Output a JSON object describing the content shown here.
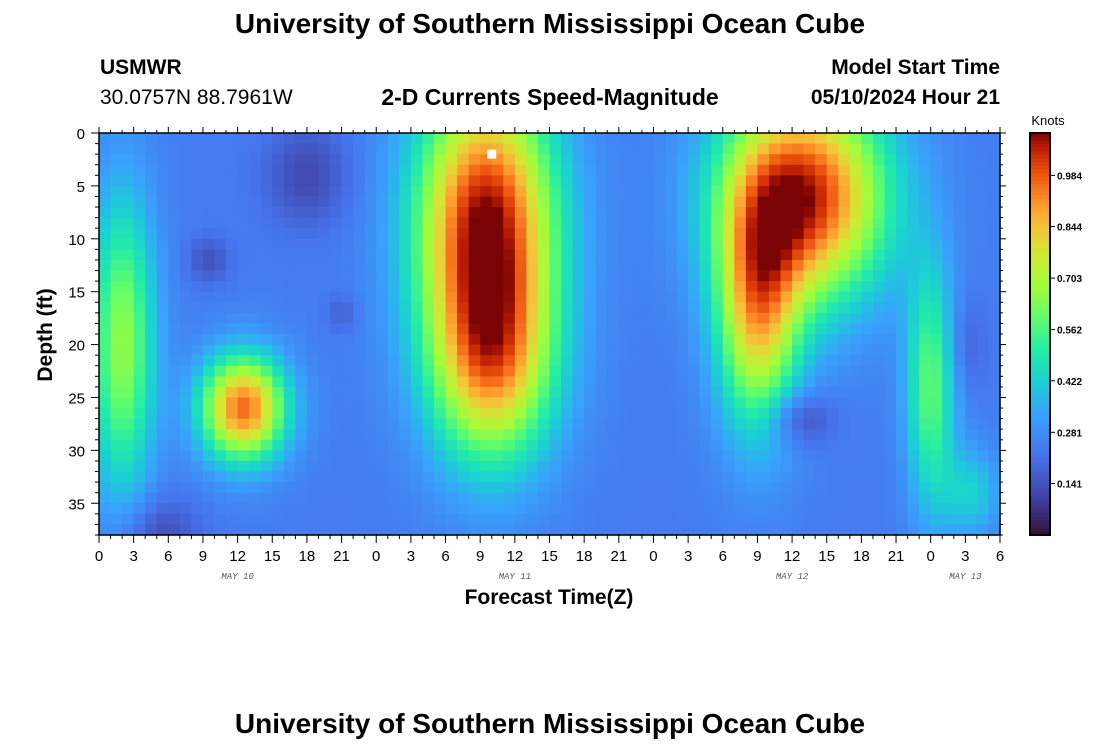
{
  "header": {
    "title": "University of Southern Mississippi Ocean Cube",
    "station": "USMWR",
    "coords": "30.0757N  88.7961W",
    "subtitle": "2-D Currents Speed-Magnitude",
    "start_label": "Model Start Time",
    "start_value": "05/10/2024 Hour 21"
  },
  "footer": {
    "title": "University of Southern Mississippi Ocean Cube"
  },
  "chart_data": {
    "type": "heatmap",
    "title": "2-D Currents Speed-Magnitude",
    "xlabel": "Forecast Time(Z)",
    "ylabel": "Depth (ft)",
    "x_range_hours": [
      0,
      78
    ],
    "y_range_ft": [
      0,
      38
    ],
    "y_inverted": true,
    "x_tick_labels": [
      "0",
      "3",
      "6",
      "9",
      "12",
      "15",
      "18",
      "21",
      "0",
      "3",
      "6",
      "9",
      "12",
      "15",
      "18",
      "21",
      "0",
      "3",
      "6",
      "9",
      "12",
      "15",
      "18",
      "21",
      "0",
      "3",
      "6"
    ],
    "y_ticks": [
      0,
      5,
      10,
      15,
      20,
      25,
      30,
      35
    ],
    "date_labels": [
      {
        "text": "MAY 10",
        "hour": 12
      },
      {
        "text": "MAY 11",
        "hour": 36
      },
      {
        "text": "MAY 12",
        "hour": 60
      },
      {
        "text": "MAY 13",
        "hour": 75
      }
    ],
    "colorbar": {
      "label": "Knots",
      "range": [
        0,
        1.1
      ],
      "ticks": [
        "0.984",
        "0.844",
        "0.703",
        "0.562",
        "0.422",
        "0.281",
        "0.141"
      ],
      "tick_values": [
        0.984,
        0.844,
        0.703,
        0.562,
        0.422,
        0.281,
        0.141
      ]
    },
    "marker": {
      "hour": 34,
      "depth": 2
    },
    "value_field_blobs": [
      {
        "hour": 2,
        "depth": 20,
        "sx": 2.0,
        "sy": 10,
        "amp": 0.42
      },
      {
        "hour": 12.5,
        "depth": 26,
        "sx": 2.6,
        "sy": 3.5,
        "amp": 0.72
      },
      {
        "hour": 18,
        "depth": 4,
        "sx": 2.6,
        "sy": 3.5,
        "amp": -0.12
      },
      {
        "hour": 9.5,
        "depth": 12,
        "sx": 1.3,
        "sy": 1.6,
        "amp": -0.1
      },
      {
        "hour": 5,
        "depth": 38,
        "sx": 2.5,
        "sy": 2.5,
        "amp": -0.12
      },
      {
        "hour": 21,
        "depth": 17,
        "sx": 0.9,
        "sy": 1.3,
        "amp": -0.07
      },
      {
        "hour": 33.5,
        "depth": 8,
        "sx": 4.2,
        "sy": 9,
        "amp": 0.82
      },
      {
        "hour": 34,
        "depth": 22,
        "sx": 3.8,
        "sy": 7,
        "amp": 0.55
      },
      {
        "hour": 61,
        "depth": 6,
        "sx": 5.0,
        "sy": 7,
        "amp": 0.82
      },
      {
        "hour": 57,
        "depth": 17,
        "sx": 2.5,
        "sy": 8,
        "amp": 0.55
      },
      {
        "hour": 72,
        "depth": 24,
        "sx": 1.5,
        "sy": 8,
        "amp": 0.35
      },
      {
        "hour": 60.5,
        "depth": 27,
        "sx": 2.0,
        "sy": 1.8,
        "amp": -0.14
      },
      {
        "hour": 75,
        "depth": 20,
        "sx": 1.2,
        "sy": 3,
        "amp": -0.07
      },
      {
        "hour": 75.5,
        "depth": 34,
        "sx": 1.8,
        "sy": 3,
        "amp": 0.18
      }
    ],
    "value_field_base": 0.24
  }
}
